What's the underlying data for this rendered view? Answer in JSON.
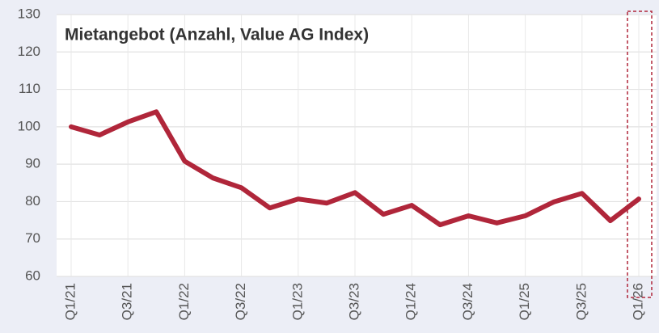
{
  "chart_data": {
    "type": "line",
    "title": "Mietangebot (Anzahl, Value AG Index)",
    "categories": [
      "Q1/21",
      null,
      "Q3/21",
      null,
      "Q1/22",
      null,
      "Q3/22",
      null,
      "Q1/23",
      null,
      "Q3/23",
      null,
      "Q1/24",
      null,
      "Q3/24",
      null,
      "Q1/25",
      null,
      "Q3/25",
      null,
      "Q1/26"
    ],
    "values": [
      100,
      97.8,
      101.3,
      104,
      90.8,
      86.3,
      83.7,
      78.3,
      80.7,
      79.6,
      82.4,
      76.6,
      79,
      73.8,
      76.2,
      74.3,
      76.2,
      79.9,
      82.2,
      74.9,
      80.7
    ],
    "color": "#b0263a",
    "ylim": [
      60,
      130
    ],
    "yticks": [
      60,
      70,
      80,
      90,
      100,
      110,
      120,
      130
    ],
    "grid": true
  }
}
